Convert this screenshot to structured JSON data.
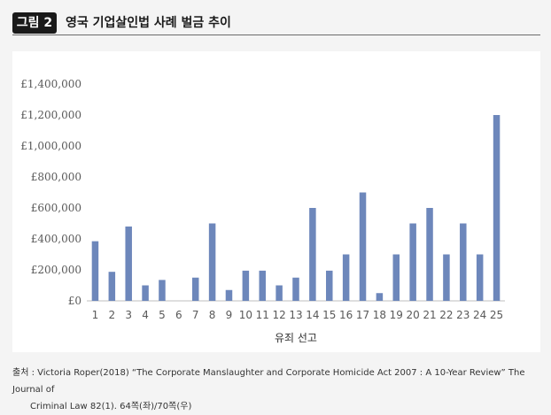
{
  "figure": {
    "badge": "그림 2",
    "title": "영국 기업살인법 사례 벌금 추이"
  },
  "source": {
    "line1": "출처 : Victoria Roper(2018) “The Corporate Manslaughter and Corporate Homicide Act 2007 : A 10-Year Review” The Journal of",
    "line2": "Criminal Law 82(1). 64쪽(좌)/70쪽(우)"
  },
  "colors": {
    "bar": "#6d87bb",
    "axis": "#bfbfbf",
    "text": "#595959"
  },
  "chart_data": {
    "type": "bar",
    "title": "",
    "xlabel": "유죄 선고",
    "ylabel": "",
    "ylim": [
      0,
      1400000
    ],
    "grid": false,
    "legend": "none",
    "yticks": [
      "£0",
      "£200,000",
      "£400,000",
      "£600,000",
      "£800,000",
      "£1,000,000",
      "£1,200,000",
      "£1,400,000"
    ],
    "categories": [
      "1",
      "2",
      "3",
      "4",
      "5",
      "6",
      "7",
      "8",
      "9",
      "10",
      "11",
      "12",
      "13",
      "14",
      "15",
      "16",
      "17",
      "18",
      "19",
      "20",
      "21",
      "22",
      "23",
      "24",
      "25"
    ],
    "values": [
      385000,
      187500,
      480000,
      100000,
      135000,
      0,
      150000,
      500000,
      70000,
      195000,
      195000,
      100000,
      150000,
      600000,
      195000,
      300000,
      700000,
      50000,
      300000,
      500000,
      600000,
      300000,
      500000,
      300000,
      1200000
    ]
  }
}
